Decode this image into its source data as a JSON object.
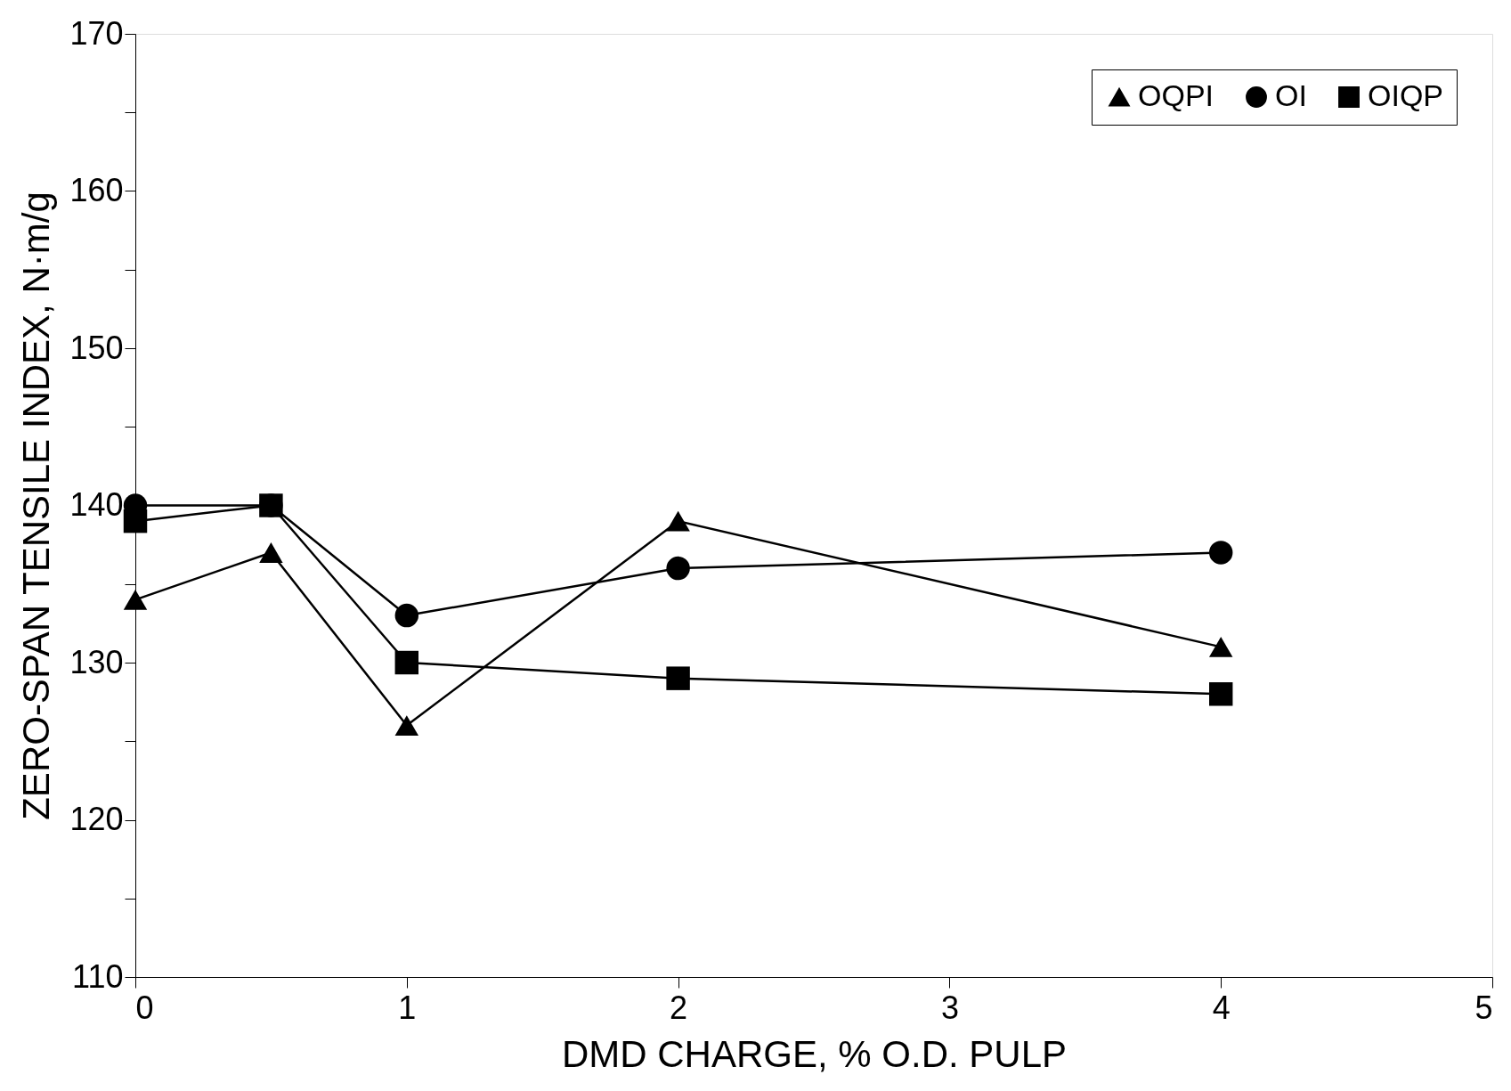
{
  "chart_data": {
    "type": "line",
    "xlabel": "DMD CHARGE, % O.D. PULP",
    "ylabel": "ZERO-SPAN TENSILE INDEX, N·m/g",
    "xlim": [
      0,
      5
    ],
    "xticks": [
      0,
      1,
      2,
      3,
      4,
      5
    ],
    "ylim": [
      110,
      170
    ],
    "yticks": [
      110,
      {
        "value": 115,
        "label": null
      },
      120,
      {
        "value": 125,
        "label": null
      },
      130,
      {
        "value": 135,
        "label": null
      },
      140,
      {
        "value": 145,
        "label": null
      },
      150,
      {
        "value": 155,
        "label": null
      },
      160,
      {
        "value": 165,
        "label": null
      },
      170
    ],
    "x": [
      0,
      0.5,
      1,
      2,
      4
    ],
    "series": [
      {
        "name": "OQPI",
        "color": "#000000",
        "marker": "triangle",
        "values": [
          134,
          137,
          126,
          139,
          131
        ]
      },
      {
        "name": "OI",
        "color": "#000000",
        "marker": "circle",
        "values": [
          140,
          140,
          133,
          136,
          137
        ]
      },
      {
        "name": "OIQP",
        "color": "#000000",
        "marker": "square",
        "values": [
          139,
          140,
          130,
          129,
          128
        ]
      }
    ],
    "grid": false,
    "legend": "top right",
    "line_style": "solid"
  }
}
